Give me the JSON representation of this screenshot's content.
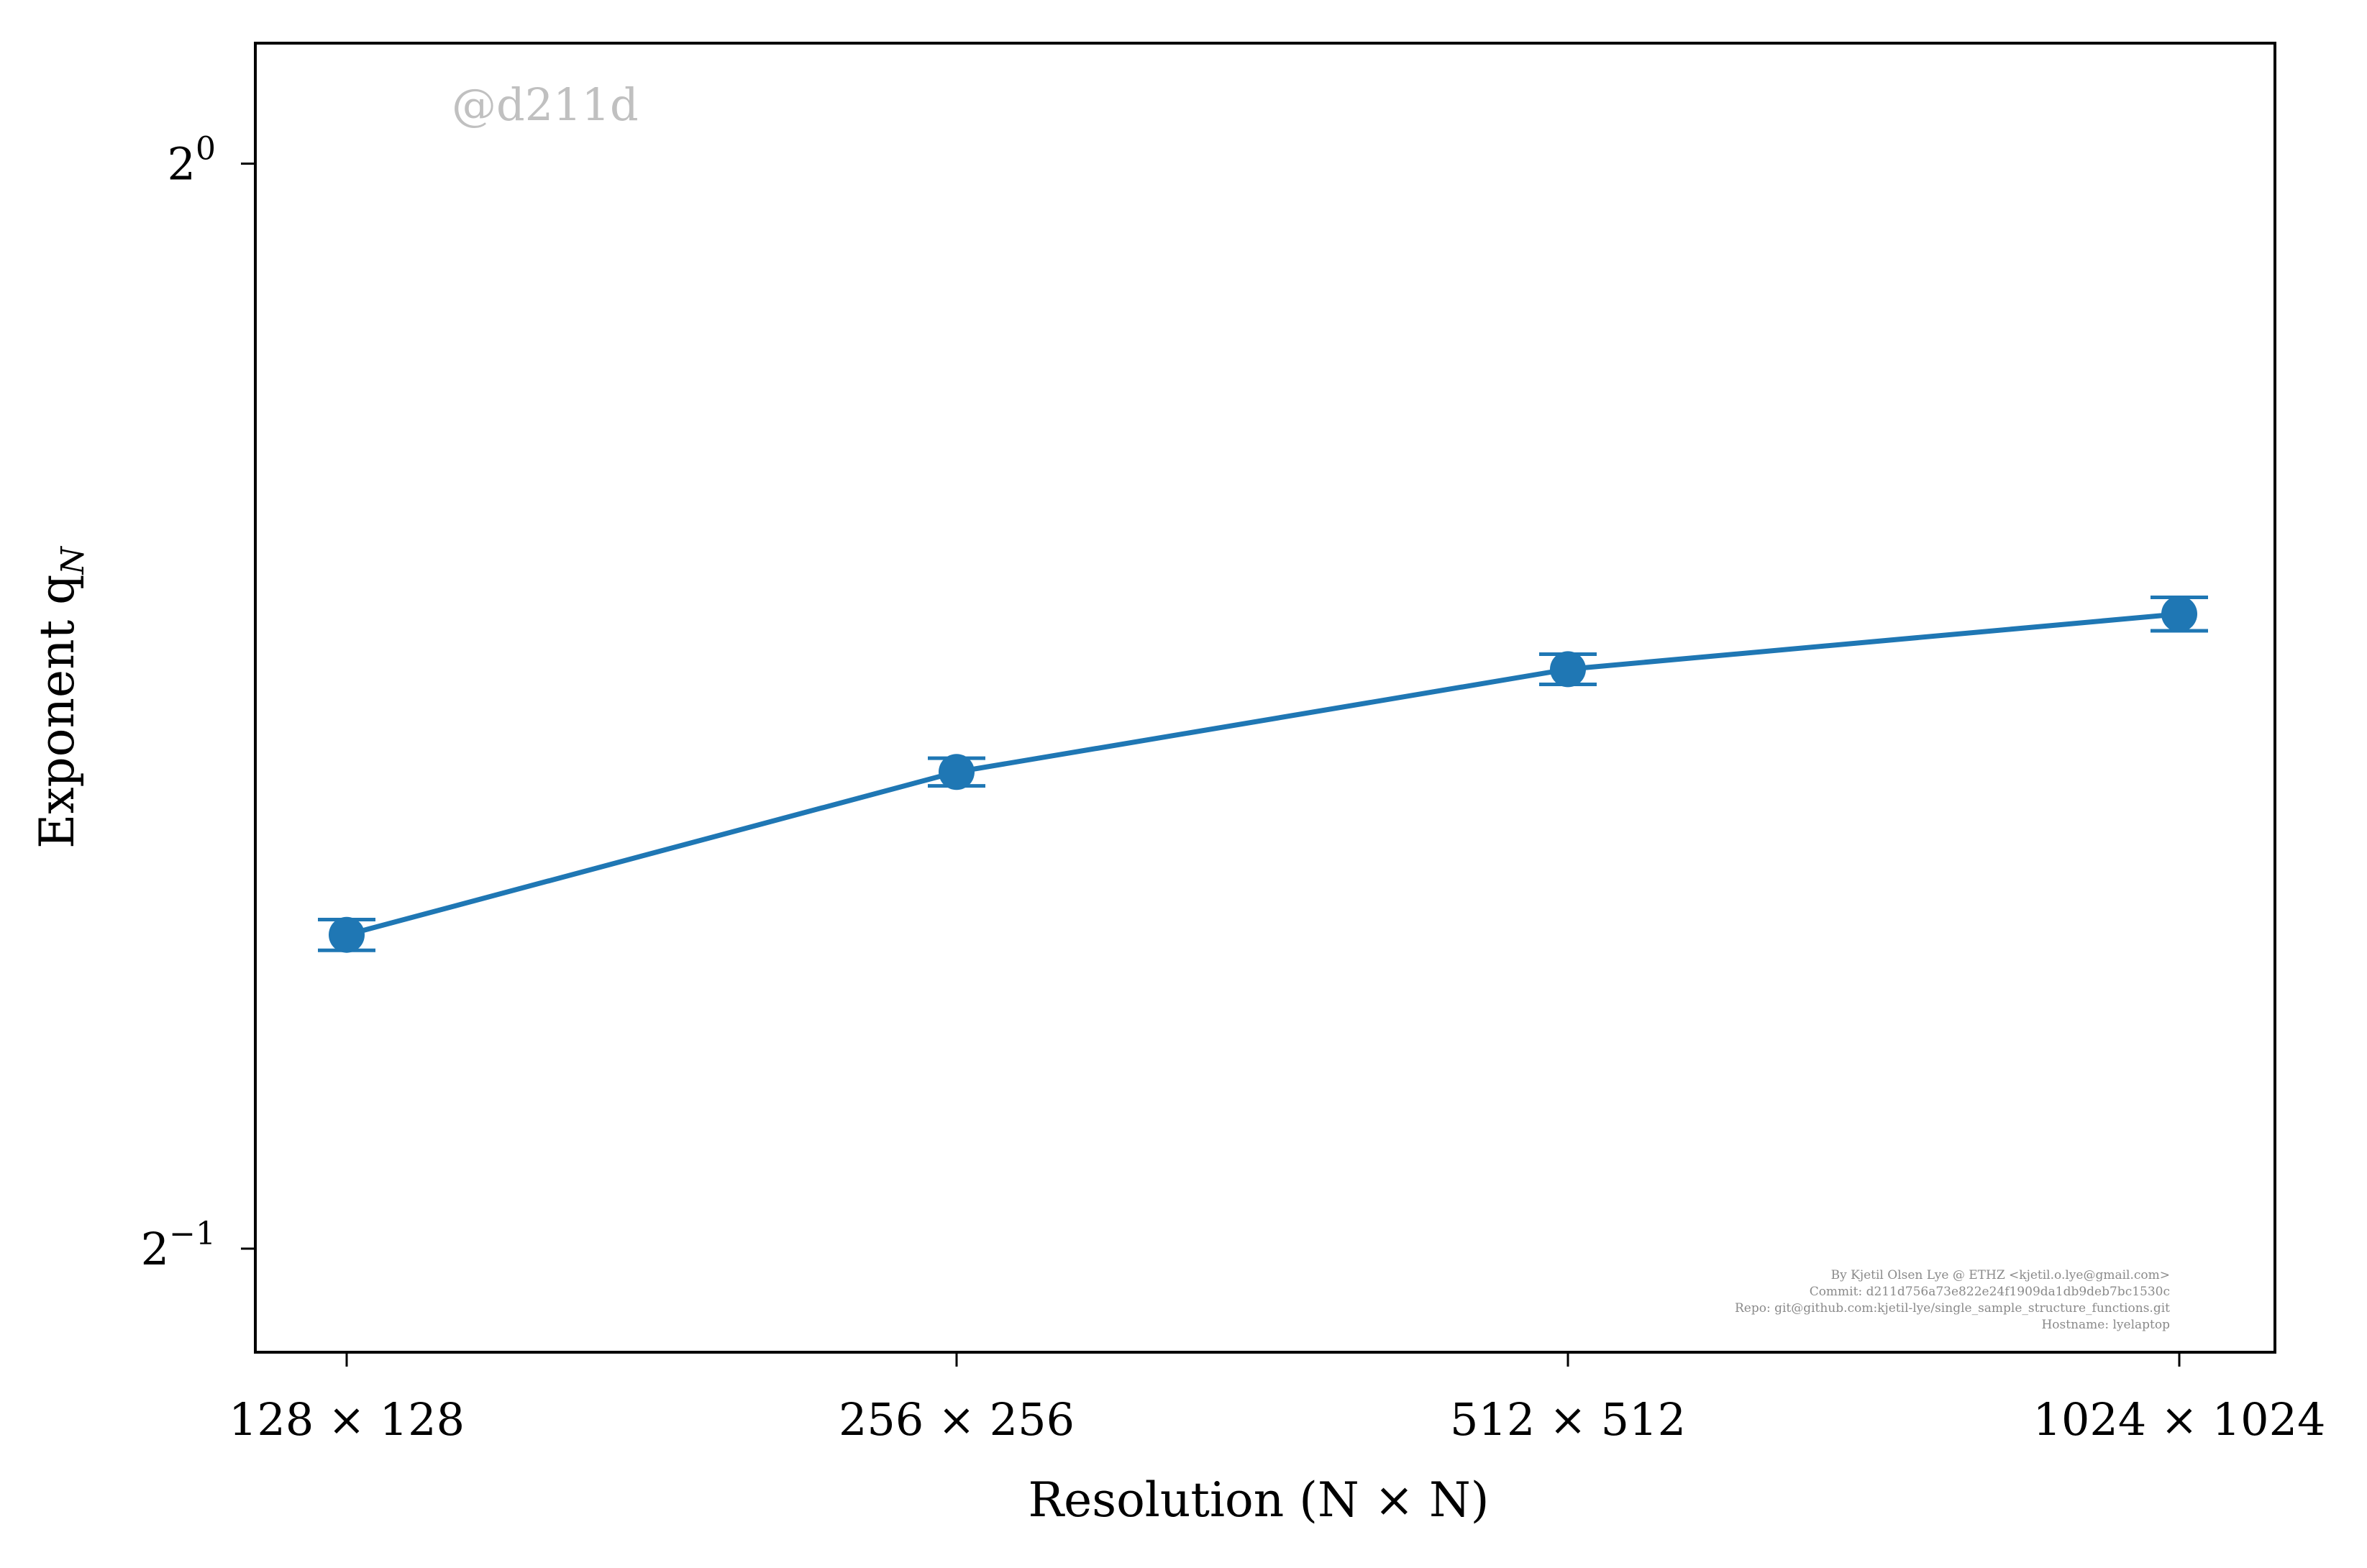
{
  "chart_data": {
    "type": "line",
    "categories": [
      "128 × 128",
      "256 × 256",
      "512 × 512",
      "1024 × 1024"
    ],
    "series": [
      {
        "values": [
          0.611,
          0.678,
          0.724,
          0.75
        ],
        "errors": [
          0.006,
          0.006,
          0.007,
          0.008
        ]
      }
    ],
    "xlabel": "Resolution (N × N)",
    "ylabel": "Exponent q",
    "ylabel_subscript": "N",
    "yscale": "log2",
    "yticks": [
      {
        "value": 0.5,
        "base": "2",
        "exp": "−1"
      },
      {
        "value": 1.0,
        "base": "2",
        "exp": "0"
      }
    ],
    "ylim": [
      0.468,
      1.08
    ],
    "grid": false,
    "legend": "none",
    "color": "#1f77b4"
  },
  "watermark": "@d211d",
  "info_lines": [
    "By Kjetil Olsen Lye @ ETHZ <kjetil.o.lye@gmail.com>",
    "Commit: d211d756a73e822e24f1909da1db9deb7bc1530c",
    "Repo: git@github.com:kjetil-lye/single_sample_structure_functions.git",
    "Hostname: lyelaptop"
  ]
}
